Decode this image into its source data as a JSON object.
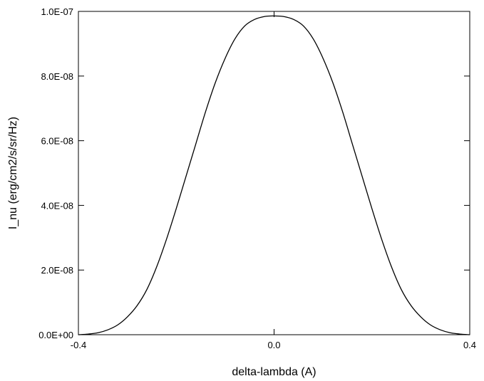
{
  "chart_data": {
    "type": "line",
    "title": "",
    "xlabel": "delta-lambda (A)",
    "ylabel": "I_nu (erg/cm2/s/sr/Hz)",
    "xlim": [
      -0.4,
      0.4
    ],
    "ylim": [
      0.0,
      1e-07
    ],
    "x_ticks": [
      -0.4,
      0.0,
      0.4
    ],
    "x_tick_labels": [
      "-0.4",
      "0.0",
      "0.4"
    ],
    "y_ticks": [
      0.0,
      2e-08,
      4e-08,
      6e-08,
      8e-08,
      1e-07
    ],
    "y_tick_labels": [
      "0.0E+00",
      "2.0E-08",
      "4.0E-08",
      "6.0E-08",
      "8.0E-08",
      "1.0E-07"
    ],
    "grid": false,
    "legend": "none",
    "line_color": "#000000",
    "series": [
      {
        "x": [
          -0.4,
          -0.38,
          -0.36,
          -0.34,
          -0.32,
          -0.3,
          -0.28,
          -0.26,
          -0.24,
          -0.22,
          -0.2,
          -0.18,
          -0.16,
          -0.14,
          -0.12,
          -0.1,
          -0.08,
          -0.06,
          -0.04,
          -0.02,
          0.0,
          0.02,
          0.04,
          0.06,
          0.08,
          0.1,
          0.12,
          0.14,
          0.16,
          0.18,
          0.2,
          0.22,
          0.24,
          0.26,
          0.28,
          0.3,
          0.32,
          0.34,
          0.36,
          0.38,
          0.4
        ],
        "y": [
          0.0,
          2e-10,
          6e-10,
          1.5e-09,
          3e-09,
          5.5e-09,
          9e-09,
          1.4e-08,
          2.1e-08,
          2.95e-08,
          3.9e-08,
          4.9e-08,
          5.9e-08,
          6.9e-08,
          7.8e-08,
          8.55e-08,
          9.15e-08,
          9.55e-08,
          9.75e-08,
          9.84e-08,
          9.86e-08,
          9.84e-08,
          9.75e-08,
          9.55e-08,
          9.15e-08,
          8.55e-08,
          7.8e-08,
          6.9e-08,
          5.9e-08,
          4.9e-08,
          3.9e-08,
          2.95e-08,
          2.1e-08,
          1.4e-08,
          9e-09,
          5.5e-09,
          3e-09,
          1.5e-09,
          6e-10,
          2e-10,
          0.0
        ]
      }
    ]
  }
}
